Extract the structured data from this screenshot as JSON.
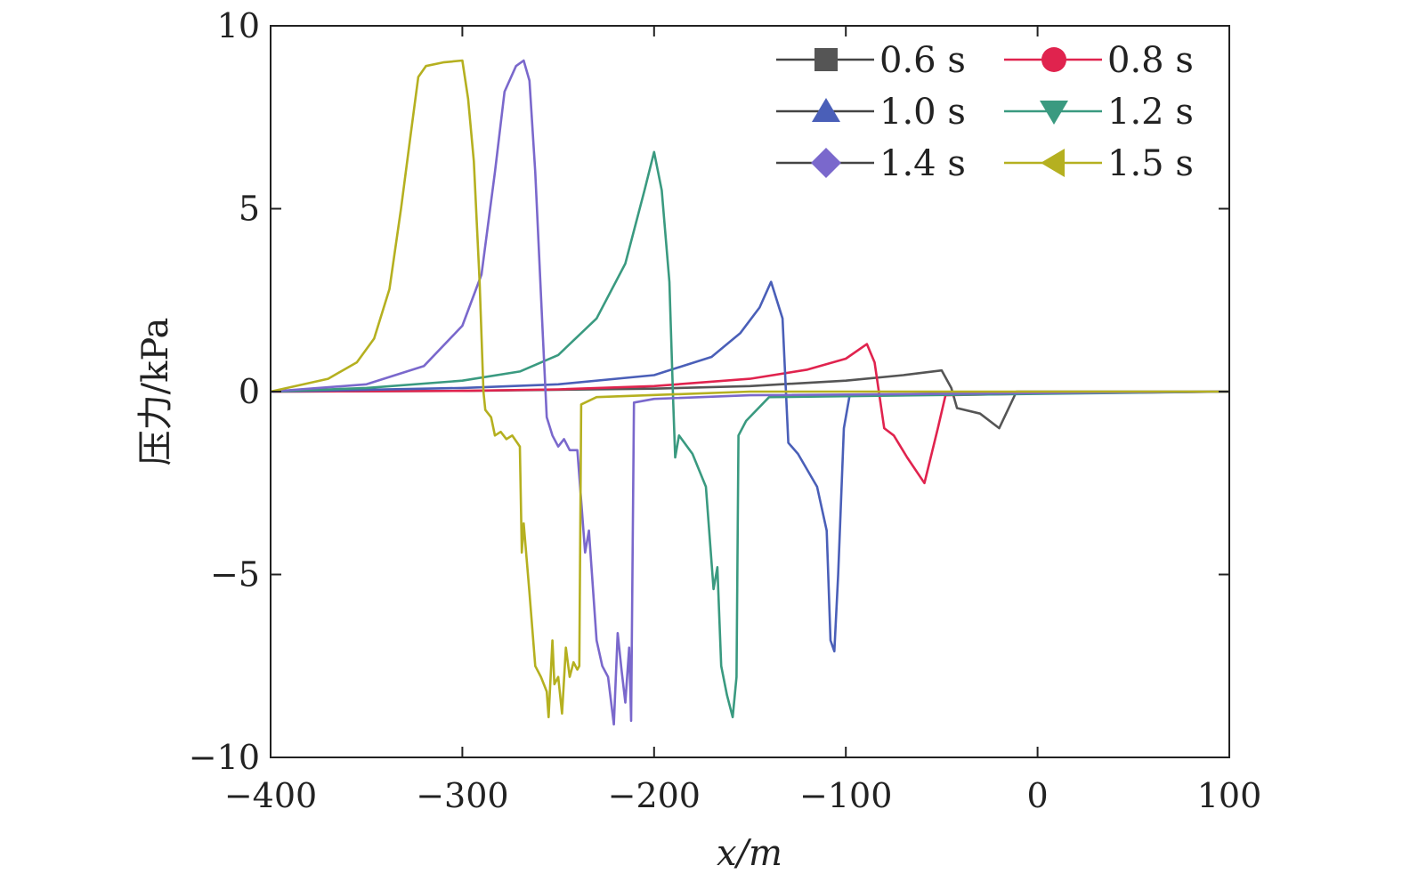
{
  "chart_data": {
    "type": "line",
    "title": "",
    "xlabel": "x/m",
    "ylabel": "压力/kPa",
    "xlim": [
      -400,
      100
    ],
    "ylim": [
      -10,
      10
    ],
    "xticks": [
      -400,
      -300,
      -200,
      -100,
      0,
      100
    ],
    "yticks": [
      -10,
      -5,
      0,
      5,
      10
    ],
    "xtick_labels": [
      "−400",
      "−300",
      "−200",
      "−100",
      "0",
      "100"
    ],
    "ytick_labels": [
      "−10",
      "−5",
      "0",
      "5",
      "10"
    ],
    "grid": false,
    "legend_position": "top-right",
    "series": [
      {
        "name": "0.6 s",
        "color": "#555555",
        "marker": "square",
        "x": [
          -400,
          -300,
          -200,
          -150,
          -100,
          -70,
          -50,
          -45,
          -42,
          -30,
          -20,
          -11,
          0,
          100
        ],
        "y": [
          0,
          0.02,
          0.08,
          0.15,
          0.3,
          0.45,
          0.58,
          0.1,
          -0.45,
          -0.6,
          -1.0,
          0,
          0,
          0
        ]
      },
      {
        "name": "0.8 s",
        "color": "#e0234e",
        "marker": "circle",
        "x": [
          -400,
          -300,
          -250,
          -200,
          -150,
          -120,
          -100,
          -89,
          -85,
          -80,
          -75,
          -68,
          -59,
          -52,
          -48,
          0,
          100
        ],
        "y": [
          0,
          0.02,
          0.06,
          0.15,
          0.35,
          0.6,
          0.9,
          1.3,
          0.8,
          -1.0,
          -1.2,
          -1.8,
          -2.5,
          -1.0,
          -0.1,
          -0.05,
          0
        ]
      },
      {
        "name": "1.0 s",
        "color": "#4a5fb8",
        "marker": "triangle-up",
        "x": [
          -400,
          -300,
          -250,
          -200,
          -170,
          -155,
          -145,
          -139,
          -133,
          -130,
          -125,
          -115,
          -110,
          -108,
          -106,
          -104,
          -101,
          -98,
          -50,
          100
        ],
        "y": [
          0,
          0.1,
          0.2,
          0.45,
          0.95,
          1.6,
          2.3,
          3.0,
          2.0,
          -1.4,
          -1.7,
          -2.6,
          -3.8,
          -6.8,
          -7.1,
          -5,
          -1,
          -0.1,
          -0.05,
          0
        ]
      },
      {
        "name": "1.2 s",
        "color": "#3a9a80",
        "marker": "triangle-down",
        "x": [
          -400,
          -350,
          -300,
          -270,
          -250,
          -230,
          -215,
          -205,
          -200,
          -196,
          -192,
          -190,
          -189,
          -187,
          -180,
          -173,
          -171,
          -169,
          -167,
          -165,
          -162,
          -159,
          -157,
          -156,
          -152,
          -140,
          100
        ],
        "y": [
          0,
          0.1,
          0.3,
          0.55,
          1.0,
          2.0,
          3.5,
          5.5,
          6.55,
          5.5,
          3,
          -0.3,
          -1.8,
          -1.2,
          -1.7,
          -2.6,
          -4,
          -5.4,
          -4.8,
          -7.5,
          -8.3,
          -8.9,
          -7.8,
          -1.2,
          -0.8,
          -0.15,
          0
        ]
      },
      {
        "name": "1.4 s",
        "color": "#7a68cc",
        "marker": "diamond",
        "x": [
          -400,
          -350,
          -320,
          -300,
          -290,
          -283,
          -278,
          -272,
          -268,
          -265,
          -262,
          -258,
          -256,
          -253,
          -250,
          -247,
          -244,
          -240,
          -236,
          -234,
          -230,
          -227,
          -224,
          -221,
          -219,
          -217,
          -215,
          -213,
          -212,
          -210.5,
          -200,
          -150,
          100
        ],
        "y": [
          0,
          0.2,
          0.7,
          1.8,
          3.2,
          6,
          8.2,
          8.9,
          9.05,
          8.5,
          6,
          1.5,
          -0.7,
          -1.2,
          -1.5,
          -1.3,
          -1.6,
          -1.6,
          -4.4,
          -3.8,
          -6.8,
          -7.5,
          -7.8,
          -9.1,
          -6.6,
          -7.6,
          -8.5,
          -7.0,
          -9.0,
          -0.3,
          -0.2,
          -0.1,
          0
        ]
      },
      {
        "name": "1.5 s",
        "color": "#b5b020",
        "marker": "triangle-left",
        "x": [
          -400,
          -370,
          -355,
          -346,
          -338,
          -332,
          -327,
          -323,
          -319,
          -310,
          -300,
          -297,
          -294,
          -291,
          -289,
          -288,
          -285,
          -283,
          -280,
          -277,
          -274,
          -270,
          -269,
          -268,
          -265,
          -262,
          -259,
          -256,
          -255,
          -253,
          -252,
          -250,
          -248,
          -246,
          -244,
          -242,
          -240,
          -239,
          -238,
          -230,
          -150,
          100
        ],
        "y": [
          0,
          0.35,
          0.8,
          1.45,
          2.8,
          5,
          7,
          8.6,
          8.9,
          9.0,
          9.05,
          8,
          6.3,
          3,
          0,
          -0.5,
          -0.7,
          -1.2,
          -1.1,
          -1.3,
          -1.2,
          -1.5,
          -4.4,
          -3.6,
          -5.5,
          -7.5,
          -7.8,
          -8.2,
          -8.9,
          -6.8,
          -8.0,
          -7.8,
          -8.8,
          -7.0,
          -7.8,
          -7.4,
          -7.6,
          -7.5,
          -0.35,
          -0.15,
          0,
          0
        ]
      }
    ]
  }
}
